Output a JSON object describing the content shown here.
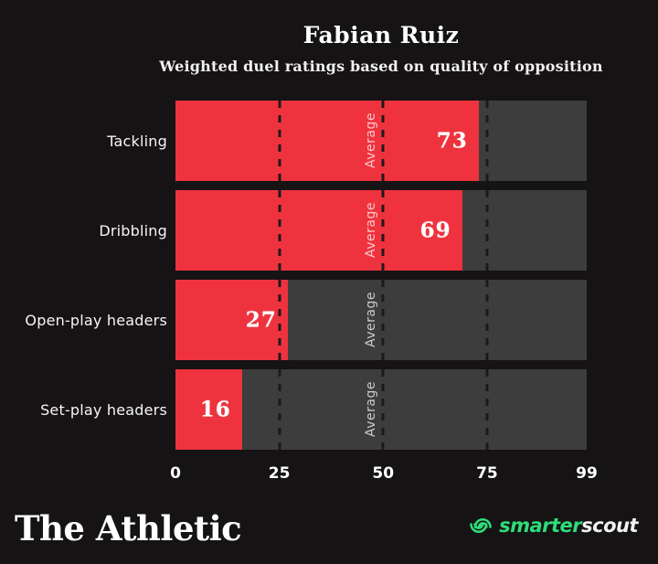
{
  "header": {
    "title": "Fabian Ruiz",
    "subtitle": "Weighted duel ratings based on quality of opposition"
  },
  "chart_data": {
    "type": "bar",
    "orientation": "horizontal",
    "categories": [
      "Tackling",
      "Dribbling",
      "Open-play headers",
      "Set-play headers"
    ],
    "values": [
      73,
      69,
      27,
      16
    ],
    "xlim": [
      0,
      99
    ],
    "x_ticks": [
      0,
      25,
      50,
      75,
      99
    ],
    "gridlines": [
      25,
      50,
      75
    ],
    "average_line_value": 50,
    "average_label": "Average",
    "legend_position": "none",
    "grid": "dashed-vertical",
    "colors": {
      "background": "#151313",
      "bar_fill": "#ee333f",
      "bar_track": "#3e3d3d",
      "grid_dash": "#1d191a",
      "value_label": "#ffffff",
      "category_label": "#f7f5f5"
    }
  },
  "footer": {
    "left_brand": "The Athletic",
    "right_brand": {
      "icon": "smarterscout-swirl-icon",
      "icon_color": "#2edd7b",
      "text_green": "smarter",
      "text_white": "scout"
    }
  }
}
